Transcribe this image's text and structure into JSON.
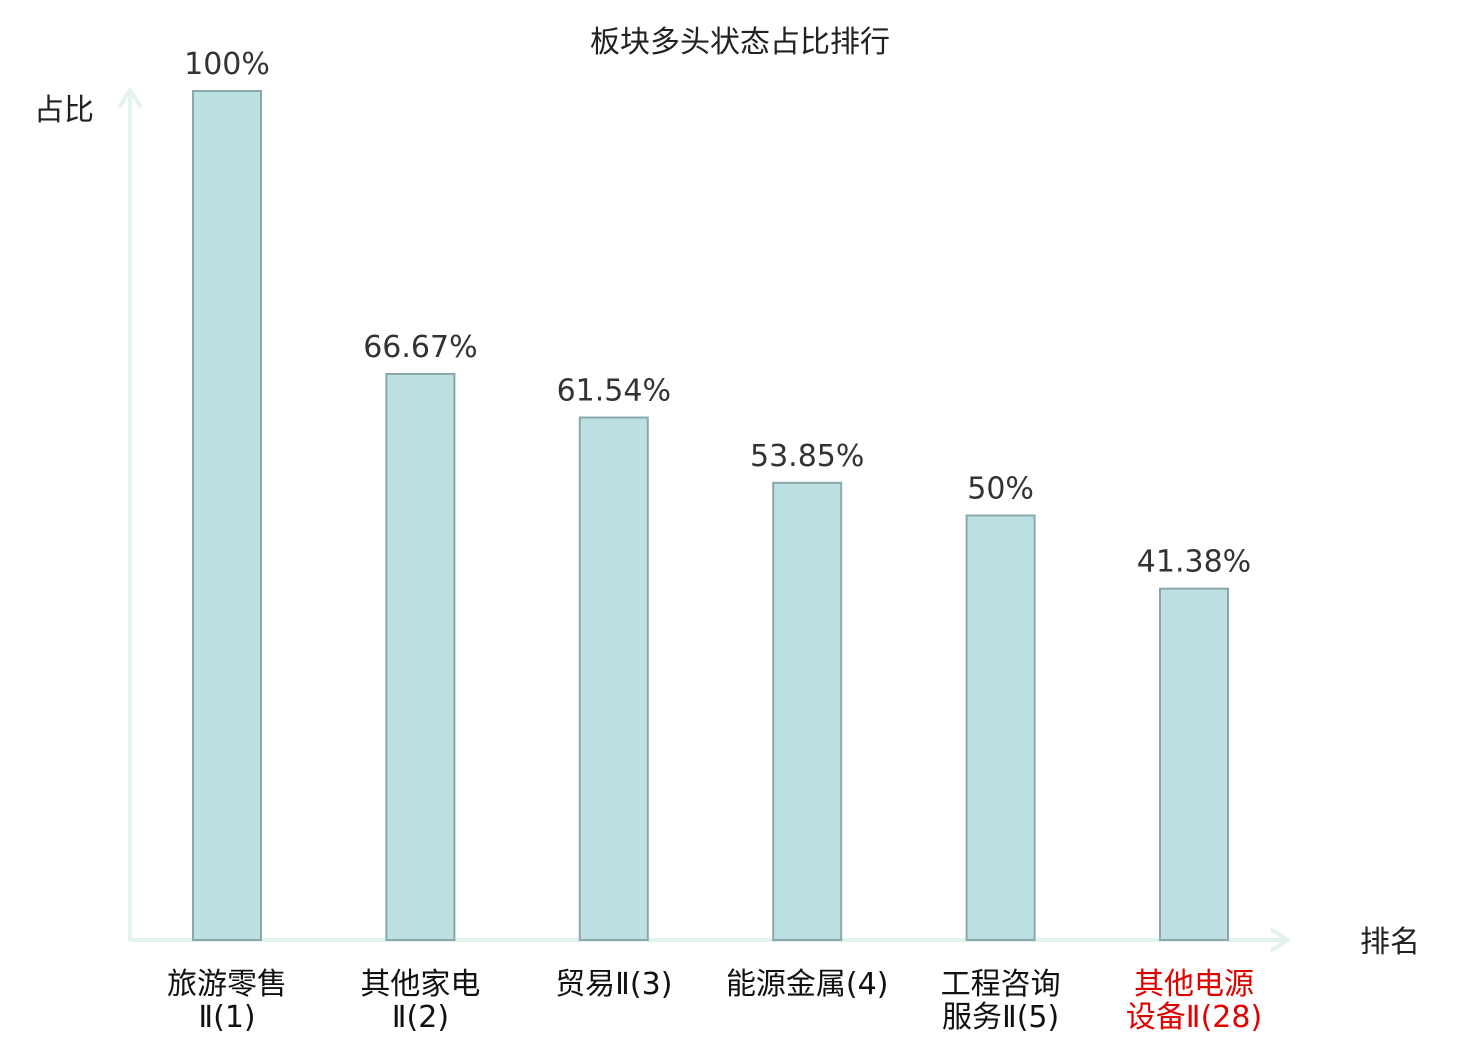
{
  "chart_data": {
    "type": "bar",
    "title": "板块多头状态占比排行",
    "ylabel": "占比",
    "xlabel": "排名",
    "ylim": [
      0,
      100
    ],
    "grid": false,
    "categories": [
      [
        "旅游零售",
        "Ⅱ(1)"
      ],
      [
        "其他家电",
        "Ⅱ(2)"
      ],
      [
        "贸易Ⅱ(3)"
      ],
      [
        "能源金属(4)"
      ],
      [
        "工程咨询",
        "服务Ⅱ(5)"
      ],
      [
        "其他电源",
        "设备Ⅱ(28)"
      ]
    ],
    "values": [
      100,
      66.67,
      61.54,
      53.85,
      50,
      41.38
    ],
    "value_labels": [
      "100%",
      "66.67%",
      "61.54%",
      "53.85%",
      "50%",
      "41.38%"
    ],
    "highlight_index": 5,
    "colors": {
      "bar_fill": "#bde0e3",
      "bar_stroke": "#8aa8ab",
      "axis": "#e2f3f1",
      "text": "#333333",
      "category_text": "#111111",
      "highlight": "#e00000"
    }
  }
}
